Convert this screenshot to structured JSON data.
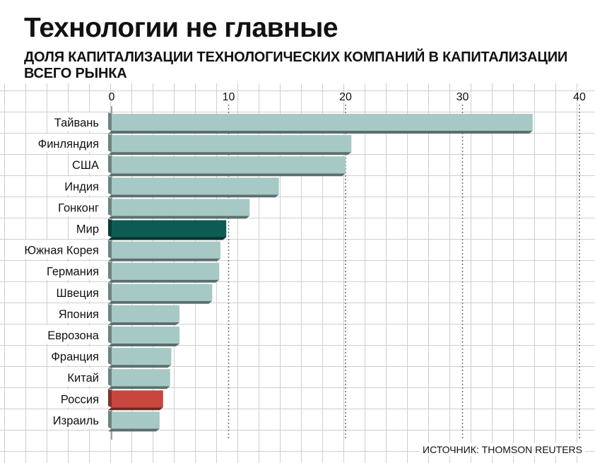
{
  "header": {
    "title": "Технологии не главные",
    "subtitle": "ДОЛЯ КАПИТАЛИЗАЦИИ ТЕХНОЛОГИЧЕСКИХ КОМПАНИЙ В КАПИТАЛИЗАЦИИ ВСЕГО РЫНКА"
  },
  "source": "ИСТОЧНИК: THOMSON REUTERS",
  "colors": {
    "bar_default": "#a6c9c5",
    "bar_highlight_world": "#0e5b55",
    "bar_highlight_russia": "#c8463e"
  },
  "chart_data": {
    "type": "bar",
    "orientation": "horizontal",
    "title": "Технологии не главные",
    "subtitle": "ДОЛЯ КАПИТАЛИЗАЦИИ ТЕХНОЛОГИЧЕСКИХ КОМПАНИЙ В КАПИТАЛИЗАЦИИ ВСЕГО РЫНКА",
    "categories": [
      "Тайвань",
      "Финляндия",
      "США",
      "Индия",
      "Гонконг",
      "Мир",
      "Южная Корея",
      "Германия",
      "Швеция",
      "Япония",
      "Еврозона",
      "Франция",
      "Китай",
      "Россия",
      "Израиль"
    ],
    "values": [
      36,
      20.5,
      20,
      14.3,
      11.8,
      9.8,
      9.3,
      9.2,
      8.6,
      5.8,
      5.8,
      5.1,
      5.0,
      4.4,
      4.1
    ],
    "highlights": {
      "Мир": "bar_highlight_world",
      "Россия": "bar_highlight_russia"
    },
    "xlim": [
      0,
      40
    ],
    "xticks": [
      0,
      10,
      20,
      30,
      40
    ],
    "grid": true,
    "xlabel": "",
    "ylabel": ""
  }
}
